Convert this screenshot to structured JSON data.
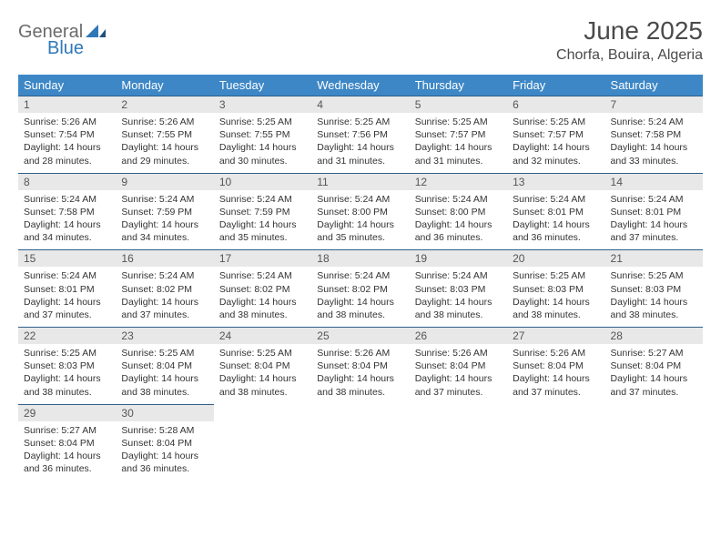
{
  "logo": {
    "part1": "General",
    "part2": "Blue"
  },
  "title": "June 2025",
  "location": "Chorfa, Bouira, Algeria",
  "colors": {
    "header_bg": "#3d87c6",
    "header_text": "#ffffff",
    "daynum_bg": "#e8e8e8",
    "border_top": "#2f5f8a",
    "logo_gray": "#6b6b6b",
    "logo_blue": "#2f78b8"
  },
  "weekdays": [
    "Sunday",
    "Monday",
    "Tuesday",
    "Wednesday",
    "Thursday",
    "Friday",
    "Saturday"
  ],
  "weeks": [
    [
      {
        "n": "1",
        "sr": "Sunrise: 5:26 AM",
        "ss": "Sunset: 7:54 PM",
        "d1": "Daylight: 14 hours",
        "d2": "and 28 minutes."
      },
      {
        "n": "2",
        "sr": "Sunrise: 5:26 AM",
        "ss": "Sunset: 7:55 PM",
        "d1": "Daylight: 14 hours",
        "d2": "and 29 minutes."
      },
      {
        "n": "3",
        "sr": "Sunrise: 5:25 AM",
        "ss": "Sunset: 7:55 PM",
        "d1": "Daylight: 14 hours",
        "d2": "and 30 minutes."
      },
      {
        "n": "4",
        "sr": "Sunrise: 5:25 AM",
        "ss": "Sunset: 7:56 PM",
        "d1": "Daylight: 14 hours",
        "d2": "and 31 minutes."
      },
      {
        "n": "5",
        "sr": "Sunrise: 5:25 AM",
        "ss": "Sunset: 7:57 PM",
        "d1": "Daylight: 14 hours",
        "d2": "and 31 minutes."
      },
      {
        "n": "6",
        "sr": "Sunrise: 5:25 AM",
        "ss": "Sunset: 7:57 PM",
        "d1": "Daylight: 14 hours",
        "d2": "and 32 minutes."
      },
      {
        "n": "7",
        "sr": "Sunrise: 5:24 AM",
        "ss": "Sunset: 7:58 PM",
        "d1": "Daylight: 14 hours",
        "d2": "and 33 minutes."
      }
    ],
    [
      {
        "n": "8",
        "sr": "Sunrise: 5:24 AM",
        "ss": "Sunset: 7:58 PM",
        "d1": "Daylight: 14 hours",
        "d2": "and 34 minutes."
      },
      {
        "n": "9",
        "sr": "Sunrise: 5:24 AM",
        "ss": "Sunset: 7:59 PM",
        "d1": "Daylight: 14 hours",
        "d2": "and 34 minutes."
      },
      {
        "n": "10",
        "sr": "Sunrise: 5:24 AM",
        "ss": "Sunset: 7:59 PM",
        "d1": "Daylight: 14 hours",
        "d2": "and 35 minutes."
      },
      {
        "n": "11",
        "sr": "Sunrise: 5:24 AM",
        "ss": "Sunset: 8:00 PM",
        "d1": "Daylight: 14 hours",
        "d2": "and 35 minutes."
      },
      {
        "n": "12",
        "sr": "Sunrise: 5:24 AM",
        "ss": "Sunset: 8:00 PM",
        "d1": "Daylight: 14 hours",
        "d2": "and 36 minutes."
      },
      {
        "n": "13",
        "sr": "Sunrise: 5:24 AM",
        "ss": "Sunset: 8:01 PM",
        "d1": "Daylight: 14 hours",
        "d2": "and 36 minutes."
      },
      {
        "n": "14",
        "sr": "Sunrise: 5:24 AM",
        "ss": "Sunset: 8:01 PM",
        "d1": "Daylight: 14 hours",
        "d2": "and 37 minutes."
      }
    ],
    [
      {
        "n": "15",
        "sr": "Sunrise: 5:24 AM",
        "ss": "Sunset: 8:01 PM",
        "d1": "Daylight: 14 hours",
        "d2": "and 37 minutes."
      },
      {
        "n": "16",
        "sr": "Sunrise: 5:24 AM",
        "ss": "Sunset: 8:02 PM",
        "d1": "Daylight: 14 hours",
        "d2": "and 37 minutes."
      },
      {
        "n": "17",
        "sr": "Sunrise: 5:24 AM",
        "ss": "Sunset: 8:02 PM",
        "d1": "Daylight: 14 hours",
        "d2": "and 38 minutes."
      },
      {
        "n": "18",
        "sr": "Sunrise: 5:24 AM",
        "ss": "Sunset: 8:02 PM",
        "d1": "Daylight: 14 hours",
        "d2": "and 38 minutes."
      },
      {
        "n": "19",
        "sr": "Sunrise: 5:24 AM",
        "ss": "Sunset: 8:03 PM",
        "d1": "Daylight: 14 hours",
        "d2": "and 38 minutes."
      },
      {
        "n": "20",
        "sr": "Sunrise: 5:25 AM",
        "ss": "Sunset: 8:03 PM",
        "d1": "Daylight: 14 hours",
        "d2": "and 38 minutes."
      },
      {
        "n": "21",
        "sr": "Sunrise: 5:25 AM",
        "ss": "Sunset: 8:03 PM",
        "d1": "Daylight: 14 hours",
        "d2": "and 38 minutes."
      }
    ],
    [
      {
        "n": "22",
        "sr": "Sunrise: 5:25 AM",
        "ss": "Sunset: 8:03 PM",
        "d1": "Daylight: 14 hours",
        "d2": "and 38 minutes."
      },
      {
        "n": "23",
        "sr": "Sunrise: 5:25 AM",
        "ss": "Sunset: 8:04 PM",
        "d1": "Daylight: 14 hours",
        "d2": "and 38 minutes."
      },
      {
        "n": "24",
        "sr": "Sunrise: 5:25 AM",
        "ss": "Sunset: 8:04 PM",
        "d1": "Daylight: 14 hours",
        "d2": "and 38 minutes."
      },
      {
        "n": "25",
        "sr": "Sunrise: 5:26 AM",
        "ss": "Sunset: 8:04 PM",
        "d1": "Daylight: 14 hours",
        "d2": "and 38 minutes."
      },
      {
        "n": "26",
        "sr": "Sunrise: 5:26 AM",
        "ss": "Sunset: 8:04 PM",
        "d1": "Daylight: 14 hours",
        "d2": "and 37 minutes."
      },
      {
        "n": "27",
        "sr": "Sunrise: 5:26 AM",
        "ss": "Sunset: 8:04 PM",
        "d1": "Daylight: 14 hours",
        "d2": "and 37 minutes."
      },
      {
        "n": "28",
        "sr": "Sunrise: 5:27 AM",
        "ss": "Sunset: 8:04 PM",
        "d1": "Daylight: 14 hours",
        "d2": "and 37 minutes."
      }
    ],
    [
      {
        "n": "29",
        "sr": "Sunrise: 5:27 AM",
        "ss": "Sunset: 8:04 PM",
        "d1": "Daylight: 14 hours",
        "d2": "and 36 minutes."
      },
      {
        "n": "30",
        "sr": "Sunrise: 5:28 AM",
        "ss": "Sunset: 8:04 PM",
        "d1": "Daylight: 14 hours",
        "d2": "and 36 minutes."
      },
      null,
      null,
      null,
      null,
      null
    ]
  ]
}
